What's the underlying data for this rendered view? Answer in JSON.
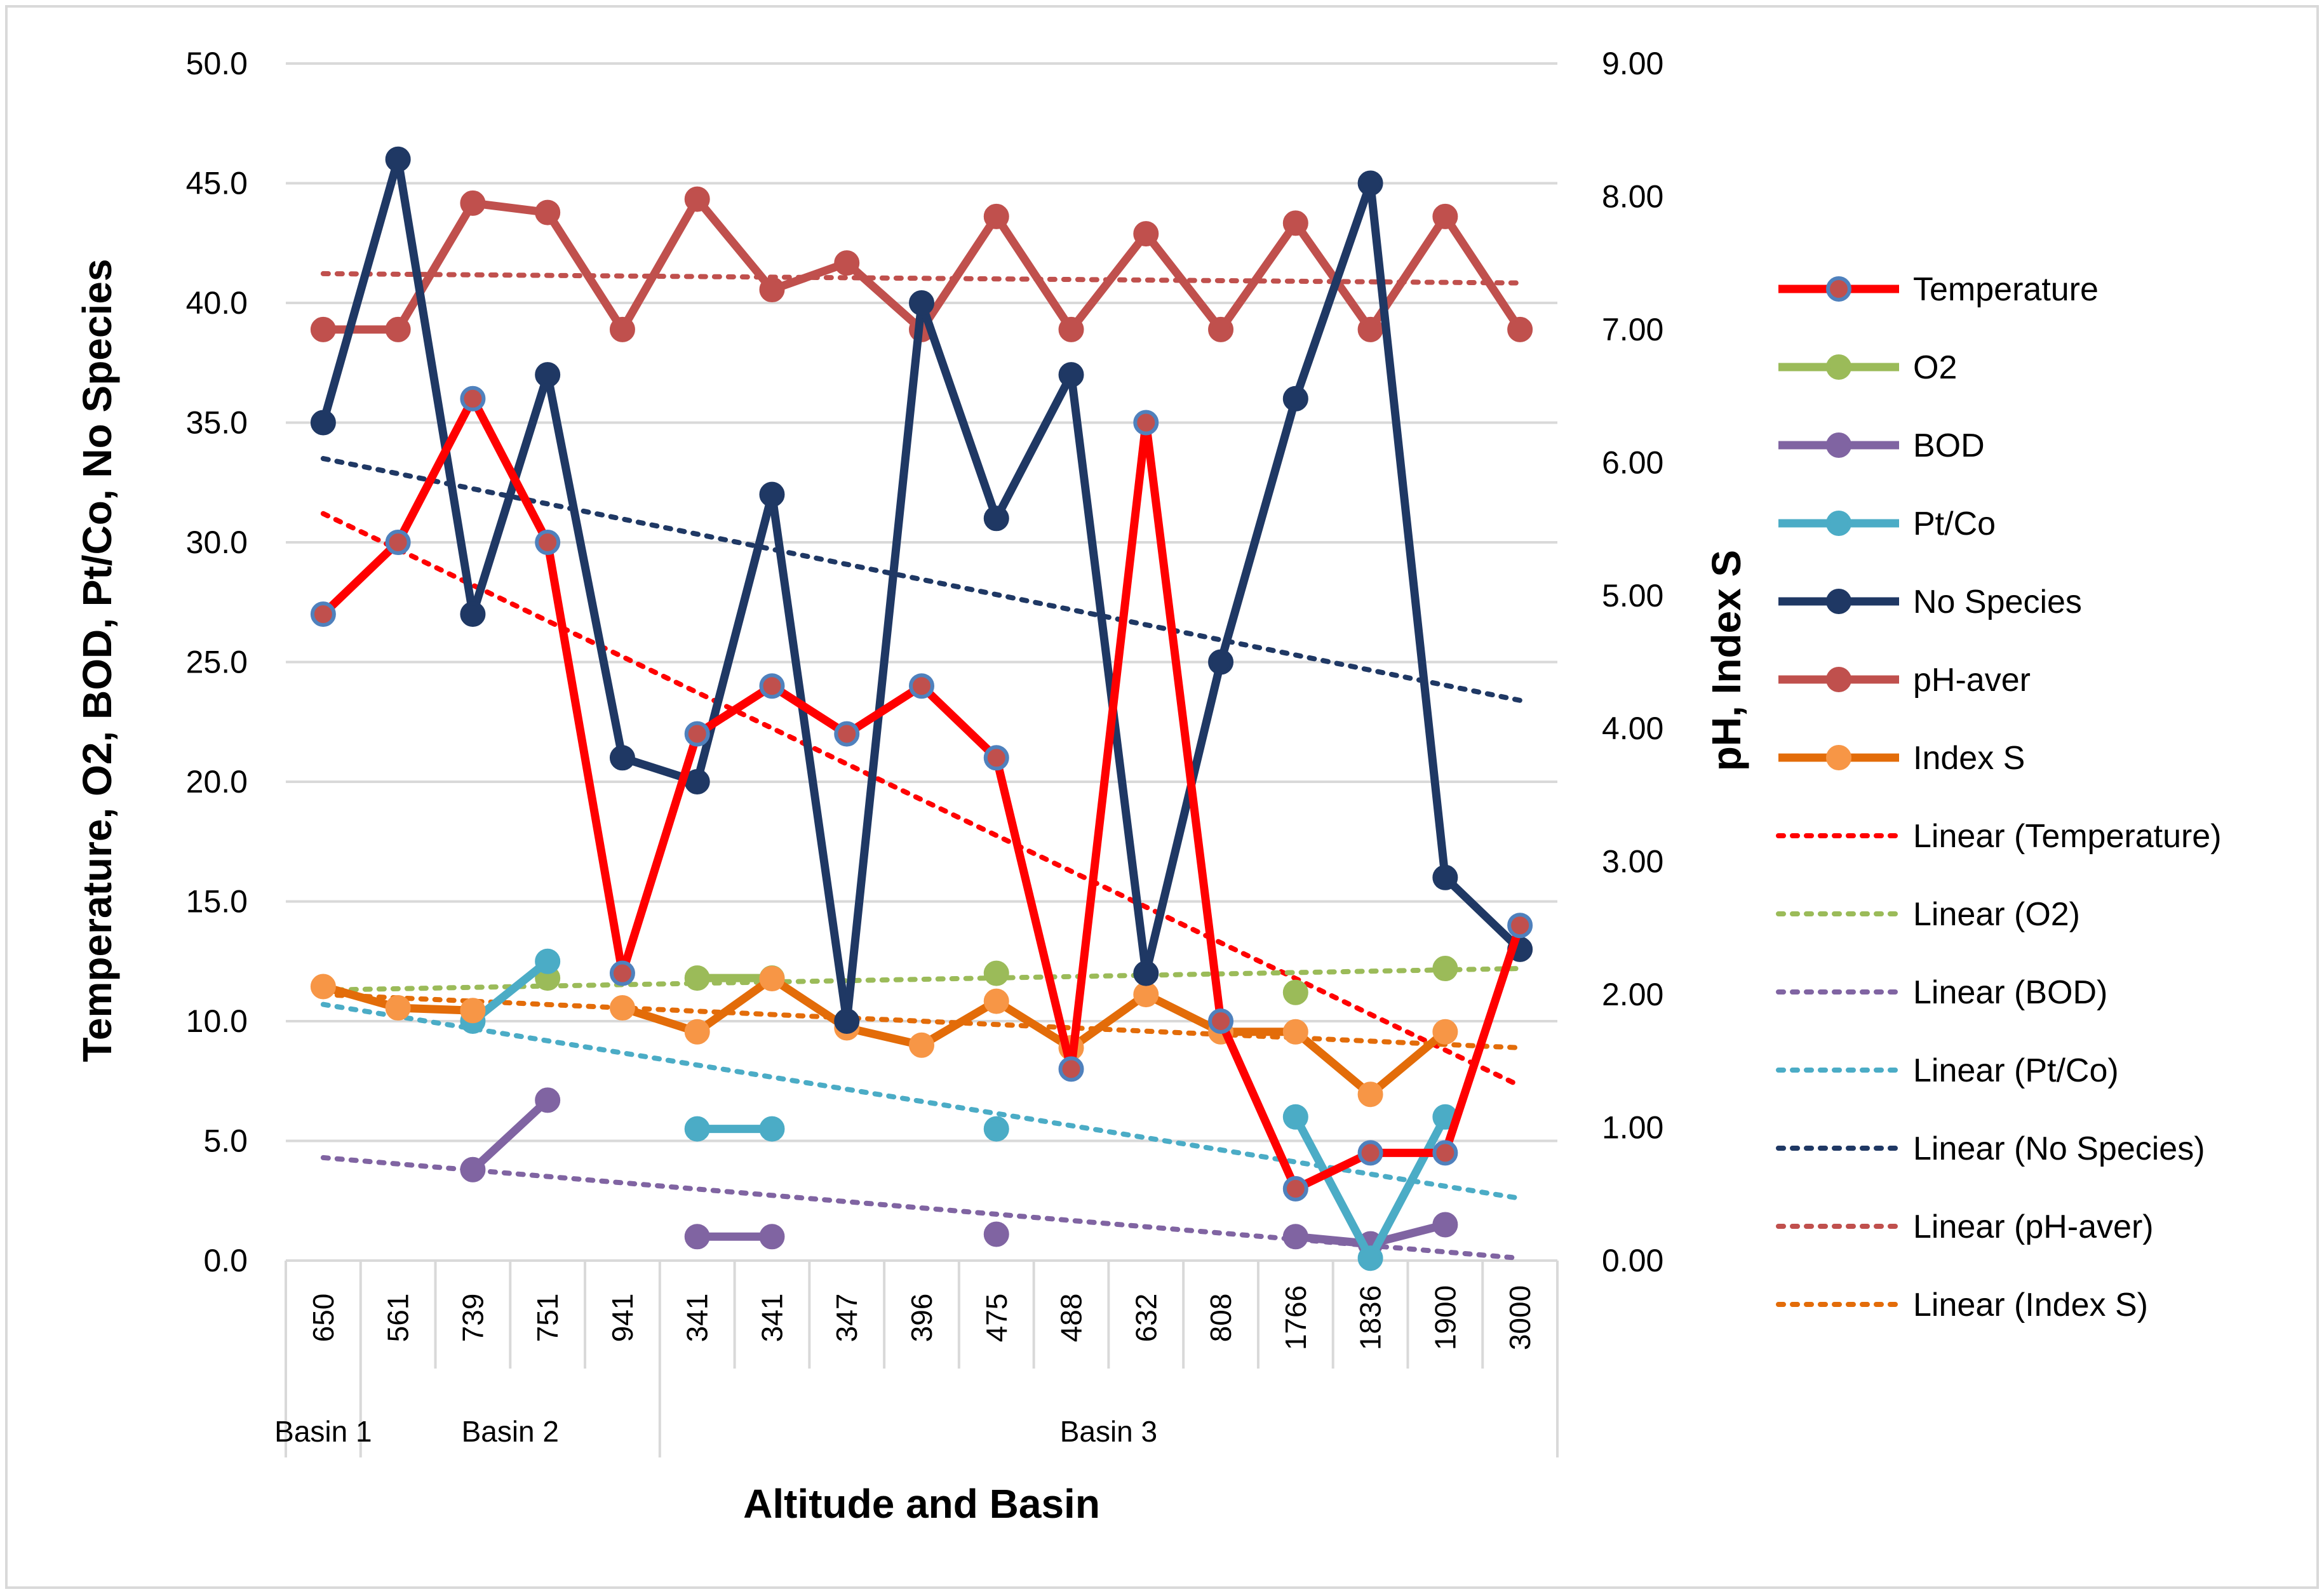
{
  "chart_data": {
    "type": "line",
    "xlabel": "Altitude and Basin",
    "ylabel_left": "Temperature, O2, BOD, Pt/Co, No Species",
    "ylabel_right": "pH, Index S",
    "y_left": {
      "min": 0,
      "max": 50,
      "step": 5,
      "tick_labels": [
        "0.0",
        "5.0",
        "10.0",
        "15.0",
        "20.0",
        "25.0",
        "30.0",
        "35.0",
        "40.0",
        "45.0",
        "50.0"
      ]
    },
    "y_right": {
      "min": 0,
      "max": 9,
      "step": 1,
      "tick_labels": [
        "0.00",
        "1.00",
        "2.00",
        "3.00",
        "4.00",
        "5.00",
        "6.00",
        "7.00",
        "8.00",
        "9.00"
      ]
    },
    "categories": [
      "650",
      "561",
      "739",
      "751",
      "941",
      "341",
      "341",
      "347",
      "396",
      "475",
      "488",
      "632",
      "808",
      "1766",
      "1836",
      "1900",
      "3000"
    ],
    "groups": [
      {
        "label": "Basin 1",
        "start": 0,
        "end": 0
      },
      {
        "label": "Basin 2",
        "start": 1,
        "end": 4
      },
      {
        "label": "Basin 3",
        "start": 5,
        "end": 16
      }
    ],
    "series": [
      {
        "name": "Temperature",
        "axis": "left",
        "color": "#ff0000",
        "marker_fill": "#c0504d",
        "marker_stroke": "#4f81bd",
        "values": [
          27,
          30,
          36,
          30,
          12,
          22,
          24,
          22,
          24,
          21,
          8,
          35,
          10,
          3,
          4.5,
          4.5,
          14
        ]
      },
      {
        "name": "O2",
        "axis": "left",
        "color": "#9bbb59",
        "marker_fill": "#9bbb59",
        "marker_stroke": "#9bbb59",
        "values": [
          null,
          null,
          null,
          11.8,
          null,
          11.8,
          11.8,
          null,
          null,
          12,
          null,
          null,
          null,
          11.2,
          null,
          12.2,
          null
        ]
      },
      {
        "name": "BOD",
        "axis": "left",
        "color": "#8064a2",
        "marker_fill": "#8064a2",
        "marker_stroke": "#8064a2",
        "values": [
          null,
          null,
          3.8,
          6.7,
          null,
          1,
          1,
          null,
          null,
          1.1,
          null,
          null,
          null,
          1,
          0.7,
          1.5,
          null
        ]
      },
      {
        "name": "Pt/Co",
        "axis": "left",
        "color": "#4bacc6",
        "marker_fill": "#4bacc6",
        "marker_stroke": "#4bacc6",
        "values": [
          null,
          null,
          10,
          12.5,
          null,
          5.5,
          5.5,
          null,
          null,
          5.5,
          null,
          null,
          null,
          6,
          0.1,
          6,
          null
        ]
      },
      {
        "name": "No Species",
        "axis": "left",
        "color": "#1f3864",
        "marker_fill": "#1f3864",
        "marker_stroke": "#1f3864",
        "values": [
          35,
          46,
          27,
          37,
          21,
          20,
          32,
          10,
          40,
          31,
          37,
          12,
          25,
          36,
          45,
          16,
          13
        ]
      },
      {
        "name": "pH-aver",
        "axis": "right",
        "color": "#c0504d",
        "marker_fill": "#c0504d",
        "marker_stroke": "#c0504d",
        "values": [
          7.0,
          7.0,
          7.95,
          7.88,
          7.0,
          7.98,
          7.3,
          7.5,
          7.0,
          7.85,
          7.0,
          7.72,
          7.0,
          7.8,
          7.0,
          7.85,
          7.0
        ]
      },
      {
        "name": "Index S",
        "axis": "right",
        "color": "#e36c09",
        "marker_fill": "#f79646",
        "marker_stroke": "#f79646",
        "values": [
          2.06,
          1.9,
          1.88,
          null,
          1.9,
          1.72,
          2.12,
          1.75,
          1.62,
          1.95,
          1.6,
          2.0,
          1.72,
          1.72,
          1.25,
          1.72,
          null
        ]
      }
    ],
    "trendlines": [
      {
        "name": "Linear (Temperature)",
        "axis": "left",
        "color": "#ff0000",
        "start": 31.2,
        "end": 7.3,
        "from": 0,
        "to": 16
      },
      {
        "name": "Linear (O2)",
        "axis": "left",
        "color": "#9bbb59",
        "start": 11.3,
        "end": 12.2,
        "from": 0,
        "to": 16
      },
      {
        "name": "Linear (BOD)",
        "axis": "left",
        "color": "#8064a2",
        "start": 4.3,
        "end": 0.1,
        "from": 0,
        "to": 16
      },
      {
        "name": "Linear (Pt/Co)",
        "axis": "left",
        "color": "#4bacc6",
        "start": 10.7,
        "end": 2.6,
        "from": 0,
        "to": 16
      },
      {
        "name": "Linear (No Species)",
        "axis": "left",
        "color": "#1f3864",
        "start": 33.5,
        "end": 23.4,
        "from": 0,
        "to": 16
      },
      {
        "name": "Linear (pH-aver)",
        "axis": "right",
        "color": "#c0504d",
        "start": 7.42,
        "end": 7.35,
        "from": 0,
        "to": 16
      },
      {
        "name": "Linear (Index S)",
        "axis": "right",
        "color": "#e36c09",
        "start": 2.0,
        "end": 1.6,
        "from": 0,
        "to": 16
      }
    ],
    "legend": {
      "position": "right",
      "entries": [
        "Temperature",
        "O2",
        "BOD",
        "Pt/Co",
        "No Species",
        "pH-aver",
        "Index S",
        "Linear (Temperature)",
        "Linear (O2)",
        "Linear (BOD)",
        "Linear (Pt/Co)",
        "Linear (No Species)",
        "Linear (pH-aver)",
        "Linear (Index S)"
      ]
    },
    "grid": true
  }
}
